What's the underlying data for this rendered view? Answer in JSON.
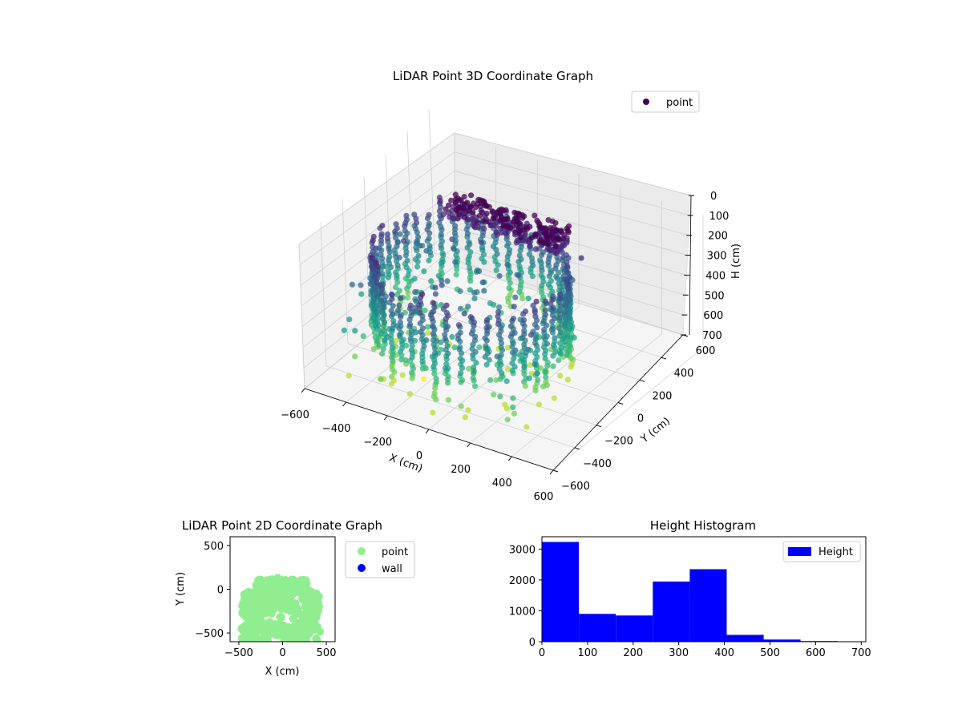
{
  "colors": {
    "viridis": [
      "#440154",
      "#482878",
      "#3e4989",
      "#31688e",
      "#26828e",
      "#1f9e89",
      "#35b779",
      "#6ece58",
      "#b5de2b",
      "#fde725"
    ],
    "point_2d": "#90ee90",
    "wall_2d": "#0000ff",
    "histogram_bar": "#0000ff"
  },
  "chart_data": [
    {
      "type": "scatter3d",
      "title": "LiDAR Point 3D Coordinate Graph",
      "xlabel": "X (cm)",
      "ylabel": "Y (cm)",
      "zlabel": "H (cm)",
      "xlim": [
        -600,
        600
      ],
      "ylim": [
        -600,
        600
      ],
      "zlim": [
        0,
        700
      ],
      "z_inverted": true,
      "x_ticks": [
        "−600",
        "−400",
        "−200",
        "0",
        "200",
        "400",
        "600"
      ],
      "y_ticks": [
        "−600",
        "−400",
        "−200",
        "0",
        "200",
        "400",
        "600"
      ],
      "z_ticks": [
        "0",
        "100",
        "200",
        "300",
        "400",
        "500",
        "600",
        "700"
      ],
      "legend": [
        {
          "label": "point",
          "color": "#440154"
        }
      ],
      "legend_position": "upper right",
      "colormap": "viridis",
      "grid": true,
      "series": [
        {
          "name": "point",
          "ring_structure": {
            "center": [
              -20,
              -150
            ],
            "radius_x": 430,
            "radius_y": 420
          },
          "points": [
            [
              -420,
              -560,
              380
            ],
            [
              -470,
              -420,
              420
            ],
            [
              -500,
              -250,
              400
            ],
            [
              -470,
              -80,
              350
            ],
            [
              -400,
              80,
              300
            ],
            [
              -300,
              120,
              380
            ],
            [
              -200,
              110,
              120
            ],
            [
              -100,
              110,
              60
            ],
            [
              0,
              110,
              20
            ],
            [
              100,
              110,
              30
            ],
            [
              200,
              110,
              60
            ],
            [
              330,
              120,
              260
            ],
            [
              420,
              40,
              80
            ],
            [
              450,
              -100,
              380
            ],
            [
              470,
              -260,
              360
            ],
            [
              440,
              -420,
              380
            ],
            [
              380,
              -540,
              500
            ],
            [
              -250,
              -560,
              560
            ],
            [
              -120,
              -540,
              600
            ],
            [
              0,
              -560,
              640
            ],
            [
              150,
              -520,
              600
            ],
            [
              250,
              -470,
              520
            ],
            [
              -320,
              -320,
              640
            ],
            [
              -180,
              -300,
              680
            ],
            [
              40,
              -250,
              600
            ],
            [
              200,
              -300,
              540
            ],
            [
              -50,
              -380,
              450
            ],
            [
              300,
              -100,
              360
            ],
            [
              -300,
              -80,
              420
            ]
          ]
        }
      ]
    },
    {
      "type": "scatter",
      "title": "LiDAR Point 2D Coordinate Graph",
      "xlabel": "X (cm)",
      "ylabel": "Y (cm)",
      "xlim": [
        -600,
        600
      ],
      "ylim": [
        -600,
        600
      ],
      "x_ticks": [
        "−500",
        "0",
        "500"
      ],
      "y_ticks": [
        "−500",
        "0",
        "500"
      ],
      "legend": [
        {
          "label": "point",
          "color": "#90ee90"
        },
        {
          "label": "wall",
          "color": "#0000ff"
        }
      ],
      "legend_position": "outside right",
      "grid": false
    },
    {
      "type": "bar",
      "title": "Height Histogram",
      "xlabel": "",
      "ylabel": "",
      "xlim": [
        0,
        710
      ],
      "ylim": [
        0,
        3400
      ],
      "x_ticks": [
        "0",
        "100",
        "200",
        "300",
        "400",
        "500",
        "600",
        "700"
      ],
      "y_ticks": [
        "0",
        "1000",
        "2000",
        "3000"
      ],
      "bin_edges": [
        0,
        81,
        162,
        243,
        324,
        405,
        486,
        567,
        648
      ],
      "values": [
        3230,
        900,
        850,
        1950,
        2350,
        220,
        70,
        20
      ],
      "legend": [
        {
          "label": "Height",
          "color": "#0000ff"
        }
      ],
      "legend_position": "upper right",
      "grid": false
    }
  ]
}
